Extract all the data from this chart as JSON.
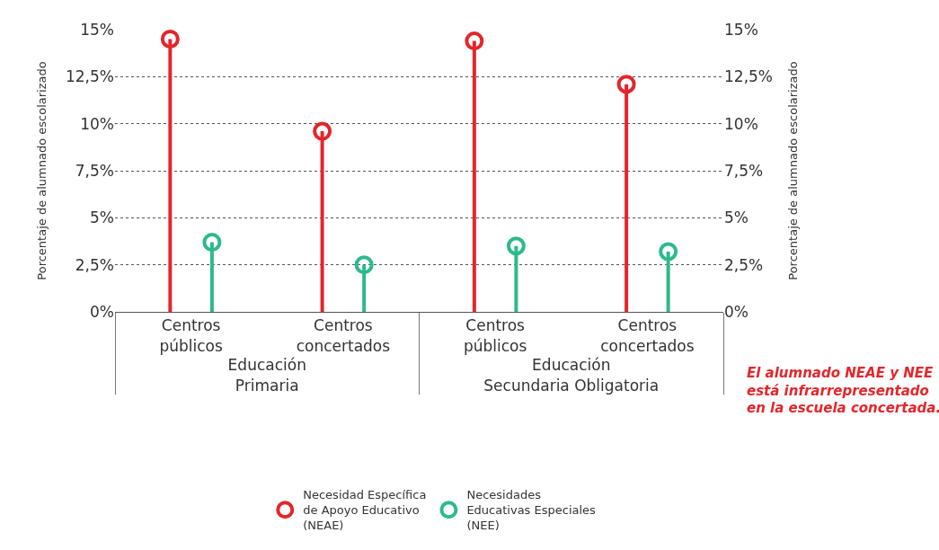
{
  "chart_data": {
    "type": "lollipop",
    "categories": [
      "Centros\npúblicos",
      "Centros\nconcertados",
      "Centros\npúblicos",
      "Centros\nconcertados"
    ],
    "series": [
      {
        "name": "Necesidad Específica\nde Apoyo Educativo\n(NEAE)",
        "color": "#e3262b",
        "values": [
          14.5,
          9.6,
          14.4,
          12.1
        ]
      },
      {
        "name": "Necesidades\nEducativas Especiales\n(NEE)",
        "color": "#2dba8a",
        "values": [
          3.7,
          2.5,
          3.5,
          3.2
        ]
      }
    ],
    "ylabel": "Porcentaje de alumnado escolarizado",
    "y2label": "Porcentaje de alumnado escolarizado",
    "ylim": [
      0,
      15
    ],
    "yticks": [
      {
        "value": 0,
        "label": "0%"
      },
      {
        "value": 2.5,
        "label": "2,5%"
      },
      {
        "value": 5,
        "label": "5%"
      },
      {
        "value": 7.5,
        "label": "7,5%"
      },
      {
        "value": 10,
        "label": "10%"
      },
      {
        "value": 12.5,
        "label": "12,5%"
      },
      {
        "value": 15,
        "label": "15%"
      }
    ],
    "y2lim": [
      0,
      15
    ],
    "y2ticks": [
      {
        "value": 0,
        "label": "0%"
      },
      {
        "value": 2.5,
        "label": "2,5%"
      },
      {
        "value": 5,
        "label": "5%"
      },
      {
        "value": 7.5,
        "label": "7,5%"
      },
      {
        "value": 10,
        "label": "10%"
      },
      {
        "value": 12.5,
        "label": "12,5%"
      },
      {
        "value": 15,
        "label": "15%"
      }
    ],
    "annotations": [
      "Educación\nPrimaria",
      "Educación\nSecundaria Obligatoria",
      "El alumnado NEAE y NEE\nestá infrarrepresentado\nen la escuela concertada."
    ],
    "grid": "y",
    "legend": "bottom",
    "marker": "circle"
  }
}
